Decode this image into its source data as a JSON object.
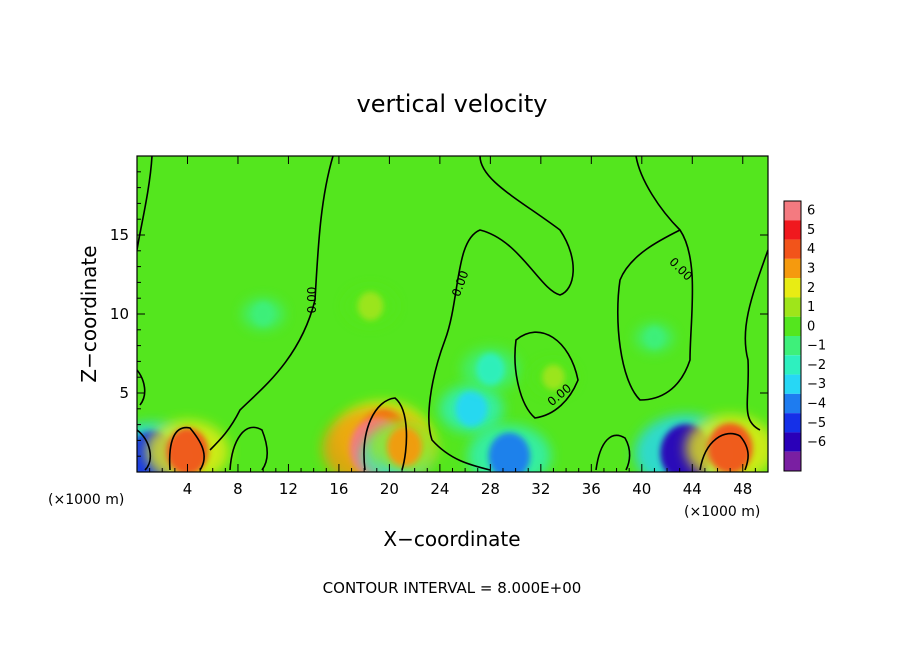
{
  "chart_data": {
    "type": "heatmap",
    "title": "vertical velocity",
    "xlabel": "X−coordinate",
    "ylabel": "Z−coordinate",
    "x_unit_left": "(×1000 m)",
    "x_unit_right": "(×1000 m)",
    "footer": "CONTOUR INTERVAL = 8.000E+00",
    "contour_label": "0.00",
    "xlim": [
      0,
      50
    ],
    "ylim": [
      0,
      20
    ],
    "x_ticks": [
      4,
      8,
      12,
      16,
      20,
      24,
      28,
      32,
      36,
      40,
      44,
      48
    ],
    "y_ticks": [
      5,
      10,
      15
    ],
    "colorbar": {
      "levels": [
        -6,
        -5,
        -4,
        -3,
        -2,
        -1,
        0,
        1,
        2,
        3,
        4,
        5,
        6
      ],
      "labels": [
        "6",
        "5",
        "4",
        "3",
        "2",
        "1",
        "0",
        "−1",
        "−2",
        "−3",
        "−4",
        "−5",
        "−6"
      ],
      "colors": [
        "#7a1fa2",
        "#2a00b8",
        "#1530e8",
        "#1e7cf0",
        "#27d7f5",
        "#2ef0bf",
        "#3ef07a",
        "#54e61e",
        "#9fe51a",
        "#e8ec14",
        "#f59a0e",
        "#f2541a",
        "#f0181e",
        "#f47a80"
      ]
    },
    "background_value": 0.3,
    "features": [
      {
        "x": 1.2,
        "z": 1.0,
        "value": -4.5
      },
      {
        "x": 4.0,
        "z": 1.3,
        "value": 4.0
      },
      {
        "x": 10.0,
        "z": 10.0,
        "value": -0.8
      },
      {
        "x": 19.5,
        "z": 2.2,
        "value": 5.0
      },
      {
        "x": 19.0,
        "z": 1.5,
        "value": 6.0
      },
      {
        "x": 20.5,
        "z": 1.0,
        "value": -3.0
      },
      {
        "x": 21.2,
        "z": 1.6,
        "value": 3.0
      },
      {
        "x": 18.5,
        "z": 10.5,
        "value": 1.5
      },
      {
        "x": 26.5,
        "z": 4.0,
        "value": -2.5
      },
      {
        "x": 28.0,
        "z": 6.5,
        "value": -2.0
      },
      {
        "x": 29.5,
        "z": 1.0,
        "value": -4.0
      },
      {
        "x": 33.0,
        "z": 6.0,
        "value": 1.0
      },
      {
        "x": 43.5,
        "z": 1.2,
        "value": -5.5
      },
      {
        "x": 47.0,
        "z": 1.5,
        "value": 4.5
      },
      {
        "x": 41.0,
        "z": 8.5,
        "value": -0.5
      }
    ]
  }
}
